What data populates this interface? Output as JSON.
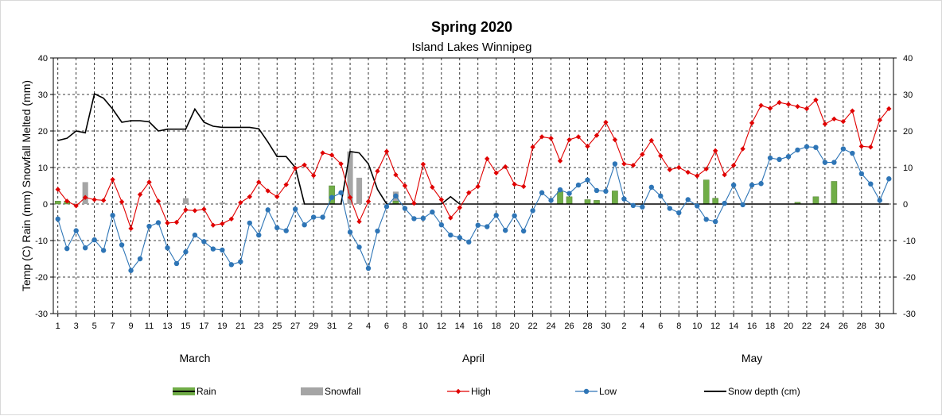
{
  "chart_data": {
    "type": "combo",
    "title": "Spring 2020",
    "subtitle": "Island Lakes Winnipeg",
    "ylabel": "Temp (C) Rain (mm) Snowfall Melted (mm)",
    "ylim": [
      -30,
      40
    ],
    "ytick_step": 10,
    "y_ticks": [
      "40",
      "30",
      "20",
      "10",
      "0",
      "-10",
      "-20",
      "-30"
    ],
    "months": [
      {
        "name": "March",
        "days": 31
      },
      {
        "name": "April",
        "days": 30
      },
      {
        "name": "May",
        "days": 31
      }
    ],
    "x_tick_labels": [
      "1",
      "3",
      "5",
      "7",
      "9",
      "11",
      "13",
      "15",
      "17",
      "19",
      "21",
      "23",
      "25",
      "27",
      "29",
      "31",
      "2",
      "4",
      "6",
      "8",
      "10",
      "12",
      "14",
      "16",
      "18",
      "20",
      "22",
      "24",
      "26",
      "28",
      "30",
      "2",
      "4",
      "6",
      "8",
      "10",
      "12",
      "14",
      "16",
      "18",
      "20",
      "22",
      "24",
      "26",
      "28",
      "30"
    ],
    "colors": {
      "rain": "#70ad47",
      "snowfall": "#a5a5a5",
      "high": "#e00000",
      "low": "#2e75b6",
      "snow_depth": "#000000",
      "grid": "#000000"
    },
    "series": [
      {
        "name": "Rain",
        "type": "bar",
        "values": [
          0.8,
          0.8,
          0,
          0,
          0,
          0,
          0,
          0,
          0,
          0,
          0,
          0,
          0,
          0,
          0,
          0,
          0,
          0,
          0,
          0,
          0,
          0,
          0,
          0,
          0,
          0,
          0,
          0,
          0,
          0,
          5,
          0,
          0,
          0,
          0,
          0,
          0,
          0.8,
          0,
          0,
          0,
          0,
          0,
          0,
          0,
          0,
          0,
          0,
          0,
          0,
          0,
          0,
          0,
          0,
          0,
          3.4,
          2,
          0,
          1.2,
          1,
          0,
          3.6,
          0,
          0,
          0,
          0,
          0,
          0,
          0,
          0,
          0,
          6.6,
          1.6,
          0,
          0,
          0,
          0,
          0,
          0,
          0,
          0,
          0.5,
          0,
          2,
          0,
          6.2,
          0,
          0,
          0,
          0,
          0,
          0
        ]
      },
      {
        "name": "Snowfall",
        "type": "bar",
        "values": [
          0.8,
          0,
          0,
          6,
          0,
          0,
          0,
          0,
          0,
          0,
          0,
          0,
          0.4,
          0,
          1.6,
          0,
          0,
          0,
          0.4,
          0,
          0,
          0,
          0,
          0,
          0.4,
          0,
          0,
          0,
          0,
          0,
          0,
          0,
          14.4,
          7.2,
          0,
          0,
          0,
          3.4,
          0,
          0.2,
          0,
          0,
          0.2,
          0,
          0,
          0,
          0,
          0,
          0.4,
          0,
          0,
          0,
          0,
          0,
          0,
          0,
          0,
          0,
          0,
          0,
          0,
          0,
          0,
          0,
          0,
          0,
          0,
          0,
          0,
          0,
          0,
          0,
          0,
          0,
          0,
          0,
          0,
          0,
          0,
          0,
          0,
          0,
          0,
          0,
          0,
          0,
          0,
          0,
          0,
          0,
          0,
          0
        ]
      },
      {
        "name": "High",
        "type": "line",
        "values": [
          4,
          0.8,
          -0.5,
          1.8,
          1.2,
          1,
          6.7,
          0.6,
          -6.7,
          2.6,
          6,
          0.8,
          -5.2,
          -5,
          -1.6,
          -1.8,
          -1.4,
          -5.8,
          -5.4,
          -4.1,
          0.4,
          2,
          6,
          3.6,
          2,
          5.3,
          9.8,
          10.7,
          7.8,
          14,
          13.4,
          11,
          1.8,
          -4.8,
          0.7,
          9,
          14.4,
          8,
          5,
          0.2,
          10.9,
          4.6,
          1.2,
          -3.8,
          -1,
          3.1,
          4.8,
          12.4,
          8.5,
          10.2,
          5.4,
          4.8,
          15.6,
          18.4,
          18,
          11.8,
          17.6,
          18.4,
          15.8,
          18.8,
          22.4,
          17.6,
          11,
          10.6,
          13.6,
          17.4,
          13.2,
          9.4,
          10,
          8.7,
          7.7,
          9.6,
          14.6,
          8,
          10.6,
          15.1,
          22.2,
          27,
          26.2,
          27.8,
          27.3,
          26.7,
          26.1,
          28.5,
          21.9,
          23.3,
          22.6,
          25.5,
          15.8,
          15.6,
          23,
          26.1
        ]
      },
      {
        "name": "Low",
        "type": "line",
        "values": [
          -4.1,
          -12.2,
          -7.3,
          -12,
          -9.8,
          -12.7,
          -3.1,
          -11.2,
          -18.2,
          -15,
          -6.1,
          -5.1,
          -12,
          -16.3,
          -13.1,
          -8.5,
          -10.3,
          -12.3,
          -12.6,
          -16.6,
          -15.8,
          -5.2,
          -8.5,
          -1.6,
          -6.5,
          -7.3,
          -1.4,
          -5.7,
          -3.6,
          -3.6,
          1.8,
          3.1,
          -7.7,
          -11.8,
          -17.6,
          -7.4,
          -0.7,
          2.2,
          -1.2,
          -4,
          -3.9,
          -2.2,
          -5.7,
          -8.5,
          -9.2,
          -10.4,
          -5.8,
          -6.2,
          -3.1,
          -7.2,
          -3.2,
          -7.4,
          -1.8,
          3.1,
          1,
          3.9,
          2.9,
          5.2,
          6.6,
          3.7,
          3.5,
          11,
          1.4,
          -0.4,
          -0.8,
          4.6,
          2.2,
          -1.2,
          -2.4,
          1.2,
          -0.5,
          -4.2,
          -4.8,
          0.2,
          5.2,
          -0.2,
          5.2,
          5.6,
          12.6,
          12.2,
          13,
          14.8,
          15.7,
          15.5,
          11.4,
          11.4,
          15.1,
          13.9,
          8.3,
          5.5,
          1,
          6.9
        ]
      },
      {
        "name": "Snow depth (cm)",
        "type": "line",
        "values": [
          17.4,
          18,
          20,
          19.5,
          30.2,
          29,
          26,
          22.4,
          22.8,
          22.8,
          22.5,
          20,
          20.5,
          20.5,
          20.5,
          26,
          22.4,
          21.3,
          21,
          21,
          21,
          21,
          20.6,
          17,
          13,
          13,
          10,
          0,
          0,
          0,
          0,
          0,
          14.4,
          14,
          11,
          4,
          0,
          0,
          0,
          0,
          0,
          0,
          0,
          2,
          0,
          0,
          0,
          0,
          0,
          0,
          0,
          0,
          0,
          0,
          0,
          0,
          0,
          0,
          0,
          0,
          0,
          0,
          0,
          0,
          0,
          0,
          0,
          0,
          0,
          0,
          0,
          0,
          0,
          0,
          0,
          0,
          0,
          0,
          0,
          0,
          0,
          0,
          0,
          0,
          0,
          0,
          0,
          0,
          0,
          0,
          0,
          0
        ]
      }
    ],
    "legend": [
      {
        "label": "Rain",
        "type": "rain"
      },
      {
        "label": "Snowfall",
        "type": "snowfall"
      },
      {
        "label": "High",
        "type": "high"
      },
      {
        "label": "Low",
        "type": "low"
      },
      {
        "label": "Snow depth (cm)",
        "type": "snow_depth"
      }
    ]
  }
}
